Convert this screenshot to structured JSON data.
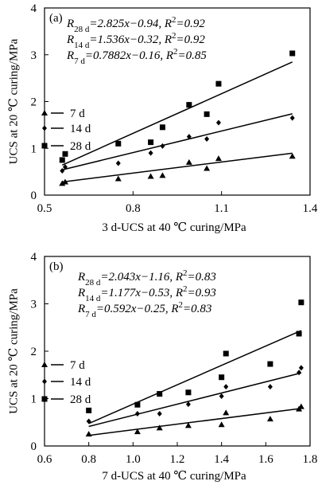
{
  "chart_data": [
    {
      "type": "scatter",
      "panel_label": "(a)",
      "xlabel": "3 d-UCS at 40 ℃ curing/MPa",
      "ylabel": "UCS at 20 ℃ curing/MPa",
      "xlim": [
        0.5,
        1.4
      ],
      "ylim": [
        0,
        4
      ],
      "xticks": [
        {
          "v": 0.5,
          "label": "0.5"
        },
        {
          "v": 0.8,
          "label": "0.8"
        },
        {
          "v": 1.1,
          "label": "1.1"
        },
        {
          "v": 1.4,
          "label": "1.4"
        }
      ],
      "yticks": [
        {
          "v": 0,
          "label": "0"
        },
        {
          "v": 1,
          "label": "1"
        },
        {
          "v": 2,
          "label": "2"
        },
        {
          "v": 3,
          "label": "3"
        },
        {
          "v": 4,
          "label": "4"
        }
      ],
      "legend_position": "left-middle",
      "equations": [
        {
          "lhs": "R",
          "sub": "28 d",
          "rhs": "=2.825x−0.94, R",
          "sup": "2",
          "tail": "=0.92"
        },
        {
          "lhs": "R",
          "sub": "14 d",
          "rhs": "=1.536x−0.32, R",
          "sup": "2",
          "tail": "=0.92"
        },
        {
          "lhs": "R",
          "sub": "7 d",
          "rhs": "=0.7882x−0.16, R",
          "sup": "2",
          "tail": "=0.85"
        }
      ],
      "series": [
        {
          "name": "7 d",
          "marker": "triangle",
          "fit": {
            "slope": 0.7882,
            "intercept": -0.16,
            "x_range": [
              0.56,
              1.34
            ]
          },
          "points": [
            [
              0.56,
              0.25
            ],
            [
              0.57,
              0.28
            ],
            [
              0.75,
              0.35
            ],
            [
              0.86,
              0.4
            ],
            [
              0.9,
              0.42
            ],
            [
              0.99,
              0.7
            ],
            [
              1.05,
              0.57
            ],
            [
              1.09,
              0.78
            ],
            [
              1.34,
              0.83
            ]
          ]
        },
        {
          "name": "14 d",
          "marker": "diamond",
          "fit": {
            "slope": 1.536,
            "intercept": -0.32,
            "x_range": [
              0.56,
              1.34
            ]
          },
          "points": [
            [
              0.56,
              0.52
            ],
            [
              0.57,
              0.6
            ],
            [
              0.75,
              0.68
            ],
            [
              0.86,
              0.9
            ],
            [
              0.9,
              1.05
            ],
            [
              0.99,
              1.25
            ],
            [
              1.05,
              1.2
            ],
            [
              1.09,
              1.55
            ],
            [
              1.34,
              1.65
            ]
          ]
        },
        {
          "name": "28 d",
          "marker": "square",
          "fit": {
            "slope": 2.825,
            "intercept": -0.94,
            "x_range": [
              0.56,
              1.34
            ]
          },
          "points": [
            [
              0.56,
              0.75
            ],
            [
              0.57,
              0.88
            ],
            [
              0.75,
              1.1
            ],
            [
              0.86,
              1.13
            ],
            [
              0.9,
              1.45
            ],
            [
              0.99,
              1.93
            ],
            [
              1.05,
              1.73
            ],
            [
              1.09,
              2.38
            ],
            [
              1.34,
              3.03
            ]
          ]
        }
      ]
    },
    {
      "type": "scatter",
      "panel_label": "(b)",
      "xlabel": "7 d-UCS at 40 ℃ curing/MPa",
      "ylabel": "UCS at 20 ℃ curing/MPa",
      "xlim": [
        0.6,
        1.8
      ],
      "ylim": [
        0,
        4
      ],
      "xticks": [
        {
          "v": 0.6,
          "label": "0.6"
        },
        {
          "v": 0.8,
          "label": "0.8"
        },
        {
          "v": 1.0,
          "label": "1.0"
        },
        {
          "v": 1.2,
          "label": "1.2"
        },
        {
          "v": 1.4,
          "label": "1.4"
        },
        {
          "v": 1.6,
          "label": "1.6"
        },
        {
          "v": 1.8,
          "label": "1.8"
        }
      ],
      "yticks": [
        {
          "v": 0,
          "label": "0"
        },
        {
          "v": 1,
          "label": "1"
        },
        {
          "v": 2,
          "label": "2"
        },
        {
          "v": 3,
          "label": "3"
        },
        {
          "v": 4,
          "label": "4"
        }
      ],
      "legend_position": "left-middle",
      "equations": [
        {
          "lhs": "R",
          "sub": "28 d",
          "rhs": "=2.043x−1.16, R",
          "sup": "2",
          "tail": "=0.83"
        },
        {
          "lhs": "R",
          "sub": "14 d",
          "rhs": "=1.177x−0.53, R",
          "sup": "2",
          "tail": "=0.93"
        },
        {
          "lhs": "R",
          "sub": "7 d",
          "rhs": "=0.592x−0.25, R",
          "sup": "2",
          "tail": "=0.83"
        }
      ],
      "series": [
        {
          "name": "7 d",
          "marker": "triangle",
          "fit": {
            "slope": 0.592,
            "intercept": -0.25,
            "x_range": [
              0.8,
              1.76
            ]
          },
          "points": [
            [
              0.8,
              0.25
            ],
            [
              1.02,
              0.3
            ],
            [
              1.12,
              0.38
            ],
            [
              1.25,
              0.43
            ],
            [
              1.4,
              0.45
            ],
            [
              1.42,
              0.7
            ],
            [
              1.62,
              0.57
            ],
            [
              1.75,
              0.78
            ],
            [
              1.76,
              0.83
            ]
          ]
        },
        {
          "name": "14 d",
          "marker": "diamond",
          "fit": {
            "slope": 1.177,
            "intercept": -0.53,
            "x_range": [
              0.8,
              1.76
            ]
          },
          "points": [
            [
              0.8,
              0.52
            ],
            [
              1.02,
              0.68
            ],
            [
              1.12,
              0.68
            ],
            [
              1.25,
              0.88
            ],
            [
              1.4,
              1.05
            ],
            [
              1.42,
              1.25
            ],
            [
              1.62,
              1.25
            ],
            [
              1.75,
              1.55
            ],
            [
              1.76,
              1.65
            ]
          ]
        },
        {
          "name": "28 d",
          "marker": "square",
          "fit": {
            "slope": 2.043,
            "intercept": -1.16,
            "x_range": [
              0.8,
              1.76
            ]
          },
          "points": [
            [
              0.8,
              0.75
            ],
            [
              1.02,
              0.87
            ],
            [
              1.12,
              1.1
            ],
            [
              1.25,
              1.13
            ],
            [
              1.4,
              1.45
            ],
            [
              1.42,
              1.95
            ],
            [
              1.62,
              1.73
            ],
            [
              1.75,
              2.37
            ],
            [
              1.76,
              3.03
            ]
          ]
        }
      ]
    }
  ]
}
